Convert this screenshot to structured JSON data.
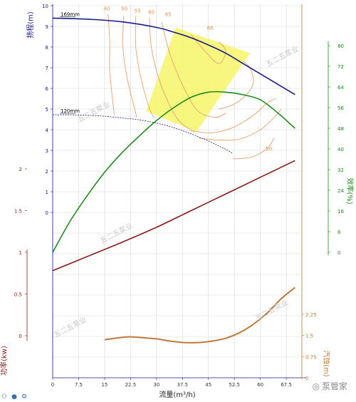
{
  "chart_data": {
    "type": "line",
    "x": {
      "label": "流量(m³/h)",
      "range": [
        0,
        72
      ],
      "ticks": [
        "0",
        "7.5",
        "15",
        "22.5",
        "30",
        "37.5",
        "45",
        "52.5",
        "60",
        "67.5"
      ],
      "tick_values": [
        0,
        7.5,
        15,
        22.5,
        30,
        37.5,
        45,
        52.5,
        60,
        67.5
      ]
    },
    "head_axis": {
      "label": "扬程(m)",
      "range": [
        -1.5,
        10
      ],
      "ticks": [
        "0",
        "1",
        "2",
        "3",
        "4",
        "5",
        "6",
        "7",
        "8",
        "9",
        "10"
      ],
      "tick_values": [
        0,
        1,
        2,
        3,
        4,
        5,
        6,
        7,
        8,
        9,
        10
      ],
      "color": "#1a1a8c"
    },
    "efficiency_axis": {
      "label": "效率(%)",
      "range": [
        0,
        80
      ],
      "ticks": [
        "0",
        "8",
        "16",
        "24",
        "32",
        "40",
        "48",
        "56",
        "64",
        "72",
        "80"
      ],
      "tick_values": [
        0,
        8,
        16,
        24,
        32,
        40,
        48,
        56,
        64,
        72,
        80
      ],
      "color": "#1e8a1e"
    },
    "power_axis": {
      "label": "功率(kw)",
      "range": [
        -0.5,
        2.1
      ],
      "ticks": [
        "0",
        "0.5",
        "1",
        "1.5",
        "2"
      ],
      "tick_values": [
        0,
        0.5,
        1,
        1.5,
        2
      ],
      "color": "#8b1a1a"
    },
    "npsh_axis": {
      "label": "汽蚀(m)",
      "range": [
        0,
        3.3
      ],
      "ticks": [
        "0",
        "0.75",
        "1.5",
        "2.25"
      ],
      "tick_values": [
        0,
        0.75,
        1.5,
        2.25
      ],
      "color": "#c07a3a"
    },
    "series": [
      {
        "name": "169mm",
        "label": "169mm",
        "axis": "head",
        "color": "#1a1a8c",
        "dashed": false,
        "x": [
          0,
          10,
          20,
          30,
          35,
          40,
          45,
          50,
          55,
          60,
          65,
          70
        ],
        "y": [
          9.4,
          9.35,
          9.22,
          8.95,
          8.72,
          8.45,
          8.1,
          7.7,
          7.2,
          6.7,
          6.2,
          5.7
        ]
      },
      {
        "name": "120mm",
        "label": "120mm",
        "axis": "head",
        "color": "#1a1a8c",
        "dashed": true,
        "x": [
          0,
          5,
          10,
          15,
          20,
          25,
          30,
          35,
          40,
          45,
          50,
          52
        ],
        "y": [
          4.72,
          4.72,
          4.7,
          4.65,
          4.57,
          4.48,
          4.32,
          4.1,
          3.8,
          3.45,
          3.05,
          2.85
        ]
      },
      {
        "name": "efficiency",
        "axis": "efficiency",
        "color": "#1e8a1e",
        "dashed": false,
        "x": [
          0,
          5,
          10,
          15,
          20,
          25,
          30,
          35,
          40,
          45,
          50,
          55,
          60,
          65,
          70
        ],
        "y": [
          0,
          12,
          22,
          31,
          38.5,
          45,
          51,
          56,
          60,
          62,
          62,
          61,
          59,
          54,
          48
        ]
      },
      {
        "name": "power",
        "axis": "power",
        "color": "#8b1a1a",
        "dashed": false,
        "x": [
          0,
          10,
          20,
          30,
          40,
          50,
          60,
          70
        ],
        "y": [
          0.78,
          0.95,
          1.12,
          1.3,
          1.5,
          1.7,
          1.9,
          2.1
        ]
      },
      {
        "name": "npsh",
        "axis": "npsh",
        "color": "#c07a3a",
        "dashed": false,
        "x": [
          15,
          18,
          22,
          26,
          30,
          34,
          38,
          42,
          46,
          50,
          54,
          58,
          62,
          66,
          70
        ],
        "y": [
          1.35,
          1.4,
          1.45,
          1.42,
          1.38,
          1.3,
          1.25,
          1.25,
          1.3,
          1.4,
          1.6,
          1.9,
          2.3,
          2.8,
          3.2
        ]
      }
    ],
    "iso_efficiency": [
      {
        "label": "40",
        "color": "#e8a070",
        "x": [
          16,
          16.5,
          16.5,
          17.8
        ],
        "y": [
          9.6,
          8.2,
          6.8,
          4.7
        ]
      },
      {
        "label": "50",
        "color": "#e8a070",
        "x": [
          20.5,
          20.3,
          21.5,
          24,
          24
        ],
        "y": [
          9.5,
          8,
          6.5,
          4.8,
          4.62
        ]
      },
      {
        "label": "55",
        "color": "#e8a070",
        "x": [
          24,
          24,
          25.5,
          28,
          29.5
        ],
        "y": [
          9.5,
          8,
          6.5,
          5,
          4.55
        ]
      },
      {
        "label": "60",
        "color": "#e8a070",
        "x": [
          28,
          28.5,
          31,
          35,
          38,
          41
        ],
        "y": [
          9.4,
          8,
          6.3,
          4.8,
          4.2,
          3.9
        ]
      },
      {
        "label": "65",
        "color": "#e8a070",
        "x": [
          31.5,
          34,
          38,
          42,
          47,
          50
        ],
        "y": [
          9.2,
          7.6,
          6,
          4.9,
          4.6,
          4.8
        ]
      },
      {
        "label": "68",
        "color": "#e8a070",
        "x": [
          40,
          44,
          48,
          50,
          48
        ],
        "y": [
          8.6,
          7.8,
          7.2,
          7.8,
          8.25
        ]
      },
      {
        "label": "65",
        "color": "#e8a070",
        "x": [
          48,
          52,
          56,
          58,
          57,
          55
        ],
        "y": [
          5.0,
          5.2,
          5.7,
          6.3,
          7.0,
          7.3
        ]
      },
      {
        "label": "60",
        "color": "#e8a070",
        "x": [
          40,
          46,
          52,
          58,
          62,
          64.5
        ],
        "y": [
          3.95,
          3.85,
          4.1,
          4.7,
          5.3,
          5.5
        ]
      },
      {
        "label": "55",
        "color": "#e8a070",
        "x": [
          42,
          48,
          54,
          60,
          64,
          66
        ],
        "y": [
          3.6,
          3.5,
          3.55,
          4.0,
          4.6,
          5.0
        ]
      },
      {
        "label": "50",
        "color": "#e8a070",
        "x": [
          52,
          54,
          58,
          62,
          64
        ],
        "y": [
          2.6,
          2.6,
          2.7,
          3.1,
          3.6
        ]
      }
    ],
    "iso_labels": [
      {
        "text": "40",
        "x": 15.6,
        "y": 9.78
      },
      {
        "text": "50",
        "x": 20.7,
        "y": 9.78
      },
      {
        "text": "55",
        "x": 24.5,
        "y": 9.68
      },
      {
        "text": "60",
        "x": 28.5,
        "y": 9.6
      },
      {
        "text": "65",
        "x": 33.4,
        "y": 9.5
      },
      {
        "text": "68",
        "x": 45.5,
        "y": 8.85
      },
      {
        "text": "50",
        "x": 62.5,
        "y": 3.0
      }
    ],
    "operating_region": {
      "color": "#f6f66a",
      "x": [
        35.5,
        57,
        41.5,
        27
      ],
      "y": [
        8.95,
        7.7,
        3.9,
        4.9
      ]
    },
    "grid": true
  },
  "watermarks": [
    "五二五泵业",
    "五二五泵业",
    "五二五泵业",
    "五二五泵业",
    "五二五泵业"
  ],
  "brand": {
    "text": "泵管家"
  },
  "toolbar": [
    {
      "icon": "nodes-icon"
    },
    {
      "icon": "user-icon"
    },
    {
      "icon": "gear-icon"
    }
  ]
}
